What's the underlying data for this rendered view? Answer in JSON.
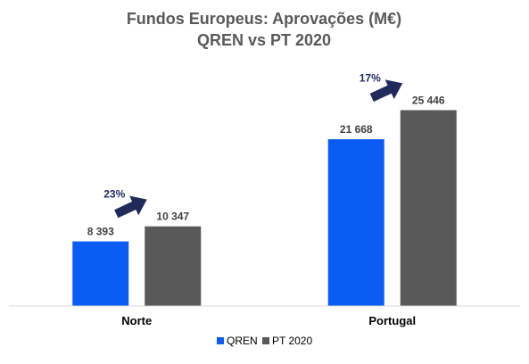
{
  "chart_data": {
    "type": "bar",
    "title": "Fundos Europeus: Aprovações (M€)",
    "subtitle": "QREN vs PT 2020",
    "categories": [
      "Norte",
      "Portugal"
    ],
    "series": [
      {
        "name": "QREN",
        "values": [
          8393,
          21668
        ],
        "labels": [
          "8 393",
          "21 668"
        ],
        "color": "#0a5cf5"
      },
      {
        "name": "PT 2020",
        "values": [
          10347,
          25446
        ],
        "labels": [
          "10 347",
          "25 446"
        ],
        "color": "#595959"
      }
    ],
    "annotations": [
      {
        "category": "Norte",
        "text": "23%",
        "icon": "arrow-up-right-icon",
        "color": "#1f2a5a"
      },
      {
        "category": "Portugal",
        "text": "17%",
        "icon": "arrow-up-right-icon",
        "color": "#1f2a5a"
      }
    ],
    "ylim": [
      0,
      30000
    ],
    "grid": false,
    "legend": "bottom-center",
    "xlabel": "",
    "ylabel": ""
  }
}
